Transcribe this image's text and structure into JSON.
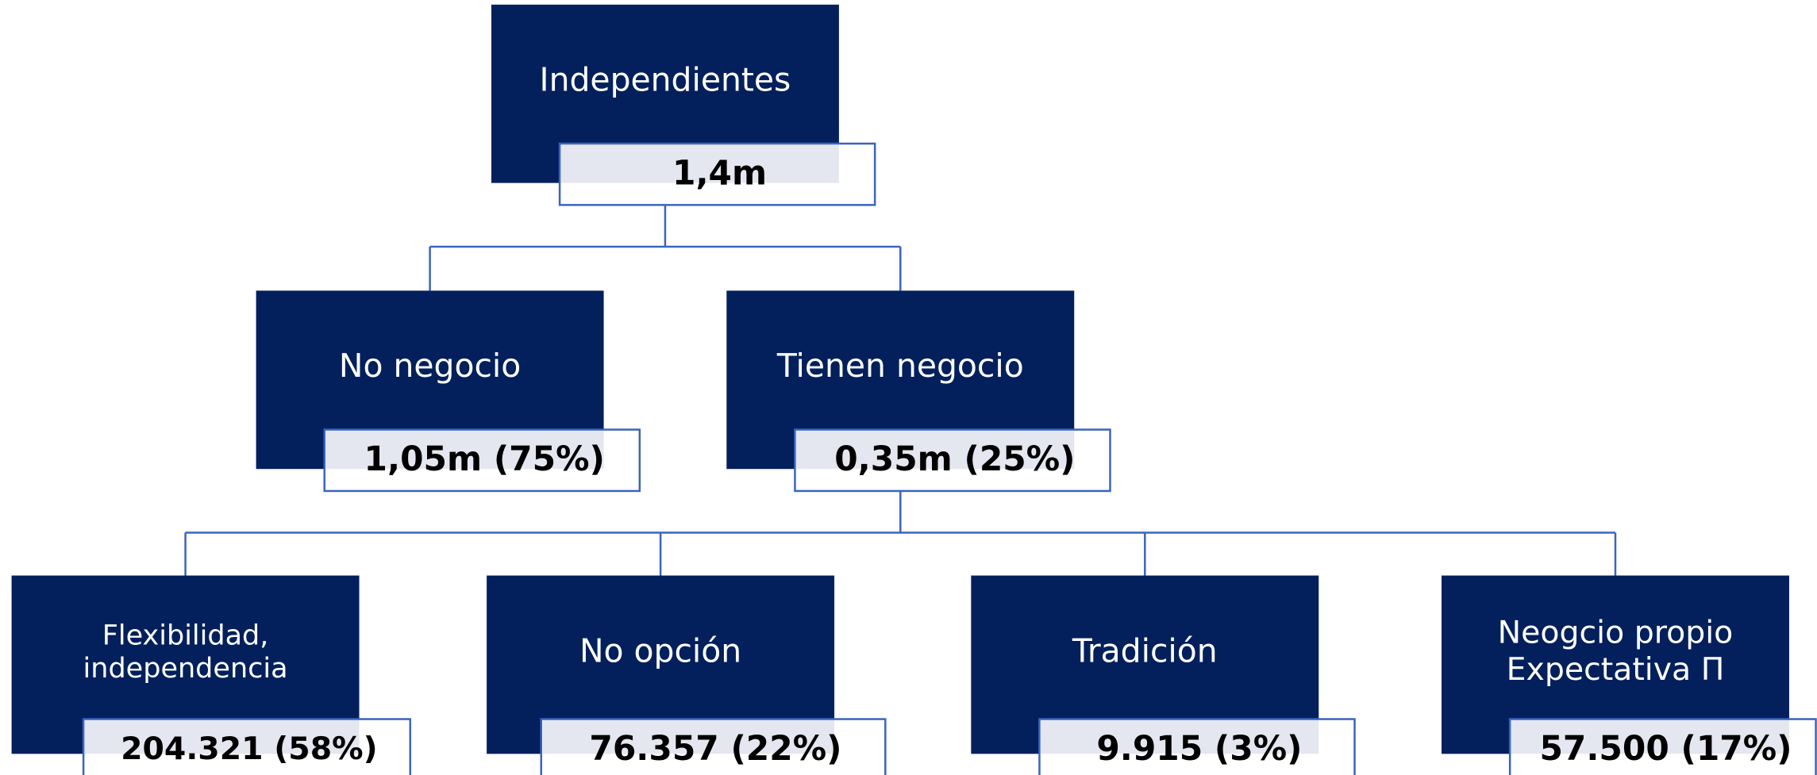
{
  "nodes": [
    {
      "label_lines": [
        "Independientes"
      ],
      "value": "1,4m"
    },
    {
      "label_lines": [
        "No negocio"
      ],
      "value": "1,05m (75%)"
    },
    {
      "label_lines": [
        "Tienen negocio"
      ],
      "value": "0,35m (25%)"
    },
    {
      "label_lines": [
        "Flexibilidad,",
        "independencia"
      ],
      "value": "204.321 (58%)"
    },
    {
      "label_lines": [
        "No opción"
      ],
      "value": "76.357 (22%)"
    },
    {
      "label_lines": [
        "Tradición"
      ],
      "value": "9.915  (3%)"
    },
    {
      "label_lines": [
        "Neogcio propio",
        "Expectativa Π"
      ],
      "value": "57.500  (17%)"
    }
  ]
}
